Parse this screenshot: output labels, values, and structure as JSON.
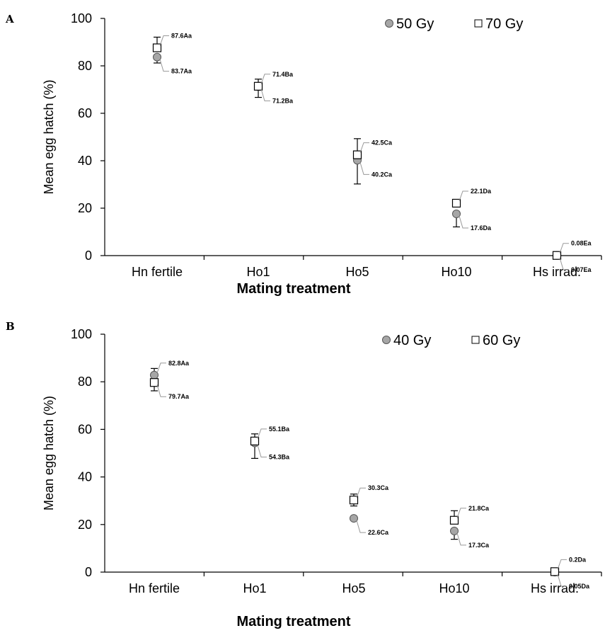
{
  "chart_data": [
    {
      "panel": "A",
      "type": "scatter",
      "title": "",
      "xlabel": "Mating treatment",
      "ylabel": "Mean egg hatch (%)",
      "ylim": [
        0,
        100
      ],
      "yticks": [
        0,
        20,
        40,
        60,
        80,
        100
      ],
      "categories": [
        "Hn fertile",
        "Ho1",
        "Ho5",
        "Ho10",
        "Hs irrad."
      ],
      "legend_position": "top-right",
      "series": [
        {
          "name": "50 Gy",
          "marker": "circle",
          "color": "#a6a6a6",
          "values": [
            83.7,
            71.2,
            40.2,
            17.6,
            0.07
          ],
          "err_low": [
            2.5,
            4.5,
            10,
            5.5,
            0
          ],
          "err_high": [
            0,
            0,
            0,
            0,
            0
          ],
          "labels": [
            "83.7Aa",
            "71.2Ba",
            "40.2Ca",
            "17.6Da",
            "0.07Ea"
          ]
        },
        {
          "name": "70 Gy",
          "marker": "square",
          "color": "#ffffff",
          "values": [
            87.6,
            71.4,
            42.5,
            22.1,
            0.08
          ],
          "err_low": [
            0,
            0,
            0,
            0,
            0
          ],
          "err_high": [
            4.5,
            3.0,
            6.8,
            0,
            0
          ],
          "labels": [
            "87.6Aa",
            "71.4Ba",
            "42.5Ca",
            "22.1Da",
            "0.08Ea"
          ]
        }
      ]
    },
    {
      "panel": "B",
      "type": "scatter",
      "title": "",
      "xlabel": "Mating treatment",
      "ylabel": "Mean egg hatch (%)",
      "ylim": [
        0,
        100
      ],
      "yticks": [
        0,
        20,
        40,
        60,
        80,
        100
      ],
      "categories": [
        "Hn fertile",
        "Ho1",
        "Ho5",
        "Ho10",
        "Hs irrad."
      ],
      "legend_position": "top-right",
      "series": [
        {
          "name": "40 Gy",
          "marker": "circle",
          "color": "#a6a6a6",
          "values": [
            82.8,
            54.3,
            22.6,
            17.3,
            0.05
          ],
          "err_low": [
            0,
            6.5,
            0,
            3.5,
            0
          ],
          "err_high": [
            2.8,
            0,
            0,
            0,
            0
          ],
          "labels": [
            "82.8Aa",
            "54.3Ba",
            "22.6Ca",
            "17.3Ca",
            "0.05Da"
          ]
        },
        {
          "name": "60 Gy",
          "marker": "square",
          "color": "#ffffff",
          "values": [
            79.7,
            55.1,
            30.3,
            21.8,
            0.2
          ],
          "err_low": [
            3.5,
            0,
            2.5,
            0,
            0
          ],
          "err_high": [
            0,
            3.0,
            2.5,
            4.0,
            0
          ],
          "labels": [
            "79.7Aa",
            "55.1Ba",
            "30.3Ca",
            "21.8Ca",
            "0.2Da"
          ]
        }
      ]
    }
  ]
}
